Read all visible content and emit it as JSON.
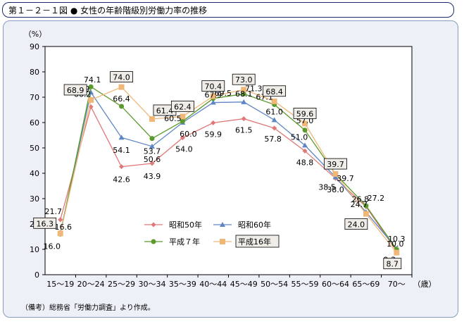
{
  "header": {
    "title": "第１－２－１図 ● 女性の年齢階級別労働力率の推移"
  },
  "note": "（備考）総務省「労働力調査」より作成。",
  "chart_data": {
    "type": "line",
    "title": "",
    "xlabel": "（歳）",
    "ylabel": "（%）",
    "ylim": [
      0,
      90
    ],
    "yticks": [
      0,
      10,
      20,
      30,
      40,
      50,
      60,
      70,
      80,
      90
    ],
    "grid": false,
    "legend_position": "lower-center",
    "categories": [
      "15～19",
      "20～24",
      "25～29",
      "30～34",
      "35～39",
      "40～44",
      "45～49",
      "50～54",
      "55～59",
      "60～64",
      "65～69",
      "70～"
    ],
    "series": [
      {
        "name": "昭和50年",
        "color": "#e07878",
        "marker": "diamond",
        "values": [
          21.7,
          66.2,
          42.6,
          43.9,
          54.0,
          59.9,
          61.5,
          57.8,
          48.8,
          38.0,
          26.8,
          9.3
        ],
        "labels": [
          "21.7",
          "66.2",
          "42.6",
          "43.9",
          "54.0",
          "59.9",
          "61.5",
          "57.8",
          "48.8",
          "38.0",
          "26.8",
          "9.3"
        ]
      },
      {
        "name": "昭和60年",
        "color": "#5f86c4",
        "marker": "triangle",
        "values": [
          16.6,
          71.9,
          54.1,
          50.6,
          60.0,
          67.9,
          68.1,
          61.0,
          51.0,
          38.5,
          24.7,
          10.3
        ],
        "labels": [
          "16.6",
          "71.9",
          "54.1",
          "50.6",
          "60.0",
          "67.9",
          "68.1",
          "61.0",
          "51.0",
          "38.5",
          "24.7",
          "10.3"
        ]
      },
      {
        "name": "平成７年",
        "color": "#5a9a2a",
        "marker": "circle",
        "values": [
          16.0,
          74.1,
          66.4,
          53.7,
          60.5,
          69.5,
          71.3,
          67.1,
          57.0,
          39.7,
          27.2,
          10.0
        ],
        "labels": [
          "16.0",
          "74.1",
          "66.4",
          "53.7",
          "60.5",
          "69.5",
          "71.3",
          "67.1",
          "57.0",
          "39.7",
          "27.2",
          "10.0"
        ]
      },
      {
        "name": "平成16年",
        "color": "#f0b878",
        "marker": "square",
        "boxed": true,
        "values": [
          16.3,
          68.9,
          74.0,
          61.4,
          62.4,
          70.4,
          73.0,
          68.4,
          59.6,
          39.7,
          24.0,
          8.7
        ],
        "labels": [
          "16.3",
          "68.9",
          "74.0",
          "61.4",
          "62.4",
          "70.4",
          "73.0",
          "68.4",
          "59.6",
          "39.7",
          "24.0",
          "8.7"
        ]
      }
    ]
  }
}
